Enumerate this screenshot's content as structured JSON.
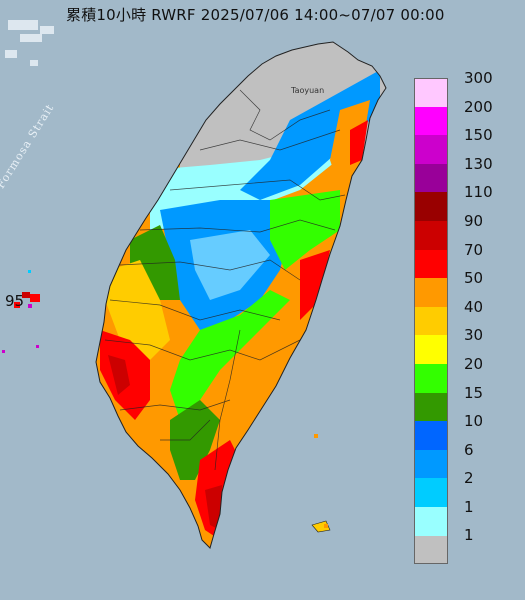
{
  "title": "累積10小時 RWRF 2025/07/06 14:00~07/07 00:00",
  "map_labels": {
    "strait": "Formosa Strait",
    "city": "Taoyuan",
    "island_value": "95"
  },
  "legend": [
    {
      "label": "300",
      "color": "#ffc8ff"
    },
    {
      "label": "200",
      "color": "#ff00ff"
    },
    {
      "label": "150",
      "color": "#cc00cc"
    },
    {
      "label": "130",
      "color": "#990099"
    },
    {
      "label": "110",
      "color": "#990000"
    },
    {
      "label": "90",
      "color": "#cc0000"
    },
    {
      "label": "70",
      "color": "#ff0000"
    },
    {
      "label": "50",
      "color": "#ff9900"
    },
    {
      "label": "40",
      "color": "#ffcc00"
    },
    {
      "label": "30",
      "color": "#ffff00"
    },
    {
      "label": "20",
      "color": "#33ff00"
    },
    {
      "label": "15",
      "color": "#339900"
    },
    {
      "label": "10",
      "color": "#0066ff"
    },
    {
      "label": "6",
      "color": "#0099ff"
    },
    {
      "label": "2",
      "color": "#00ccff"
    },
    {
      "label": "1",
      "color": "#99ffff"
    },
    {
      "label": "",
      "color": "#c0c0c0"
    }
  ],
  "bottom_label": "1"
}
